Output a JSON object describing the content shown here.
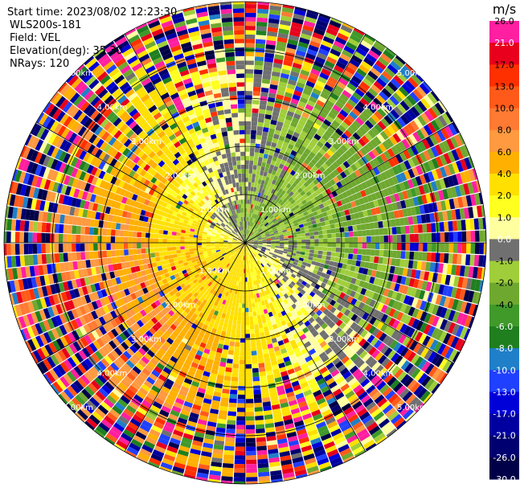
{
  "info": {
    "start_time": "Start time: 2023/08/02 12:23:30",
    "instrument": "WLS200s-181",
    "field": "Field: VEL",
    "elevation": "Elevation(deg): 35.30",
    "nrays": "NRays: 120"
  },
  "colorbar": {
    "title": "m/s",
    "ticks": [
      "26.0",
      "21.0",
      "17.0",
      "13.0",
      "10.0",
      "8.0",
      "6.0",
      "4.0",
      "2.0",
      "1.0",
      "0.0",
      "-1.0",
      "-2.0",
      "-4.0",
      "-6.0",
      "-8.0",
      "-10.0",
      "-13.0",
      "-17.0",
      "-21.0",
      "-26.0",
      "-30.0"
    ],
    "colors": [
      "#ff1fa0",
      "#e8001c",
      "#ff3000",
      "#ff5a1a",
      "#ff7a33",
      "#ff9a40",
      "#ffb000",
      "#ffe000",
      "#ffff20",
      "#ffffa0",
      "#707070",
      "#9fce3a",
      "#6fa82f",
      "#3f9a2a",
      "#1f7f1f",
      "#1f7fc8",
      "#2040ff",
      "#0000d8",
      "#0000a0",
      "#000070",
      "#000048"
    ]
  },
  "rings": {
    "labels_inner": [
      "1.00km",
      "1.00km",
      "1.00km",
      "1.00km"
    ],
    "labels_mid": [
      "2.00km",
      "2.00km",
      "2.00km",
      "2.00km"
    ],
    "labels_outer": [
      "3.00km",
      "3.00km",
      "3.00km",
      "3.00km"
    ],
    "labels_far": [
      "4.00km",
      "4.00km",
      "4.00km",
      "4.00km"
    ],
    "labels_edge": [
      "5.00km",
      "5.00km",
      "5.00km",
      "5.00km"
    ]
  },
  "chart_data": {
    "type": "heatmap",
    "title": "",
    "field": "VEL",
    "units": "m/s",
    "nrays": 120,
    "elevation_deg": 35.3,
    "range_rings_km": [
      1.0,
      2.0,
      3.0,
      4.0,
      5.0
    ],
    "max_range_km": 5.0,
    "color_scale_ticks": [
      26.0,
      21.0,
      17.0,
      13.0,
      10.0,
      8.0,
      6.0,
      4.0,
      2.0,
      1.0,
      0.0,
      -1.0,
      -2.0,
      -4.0,
      -6.0,
      -8.0,
      -10.0,
      -13.0,
      -17.0,
      -21.0,
      -26.0,
      -30.0
    ],
    "color_scale_range": [
      -30.0,
      26.0
    ]
  }
}
